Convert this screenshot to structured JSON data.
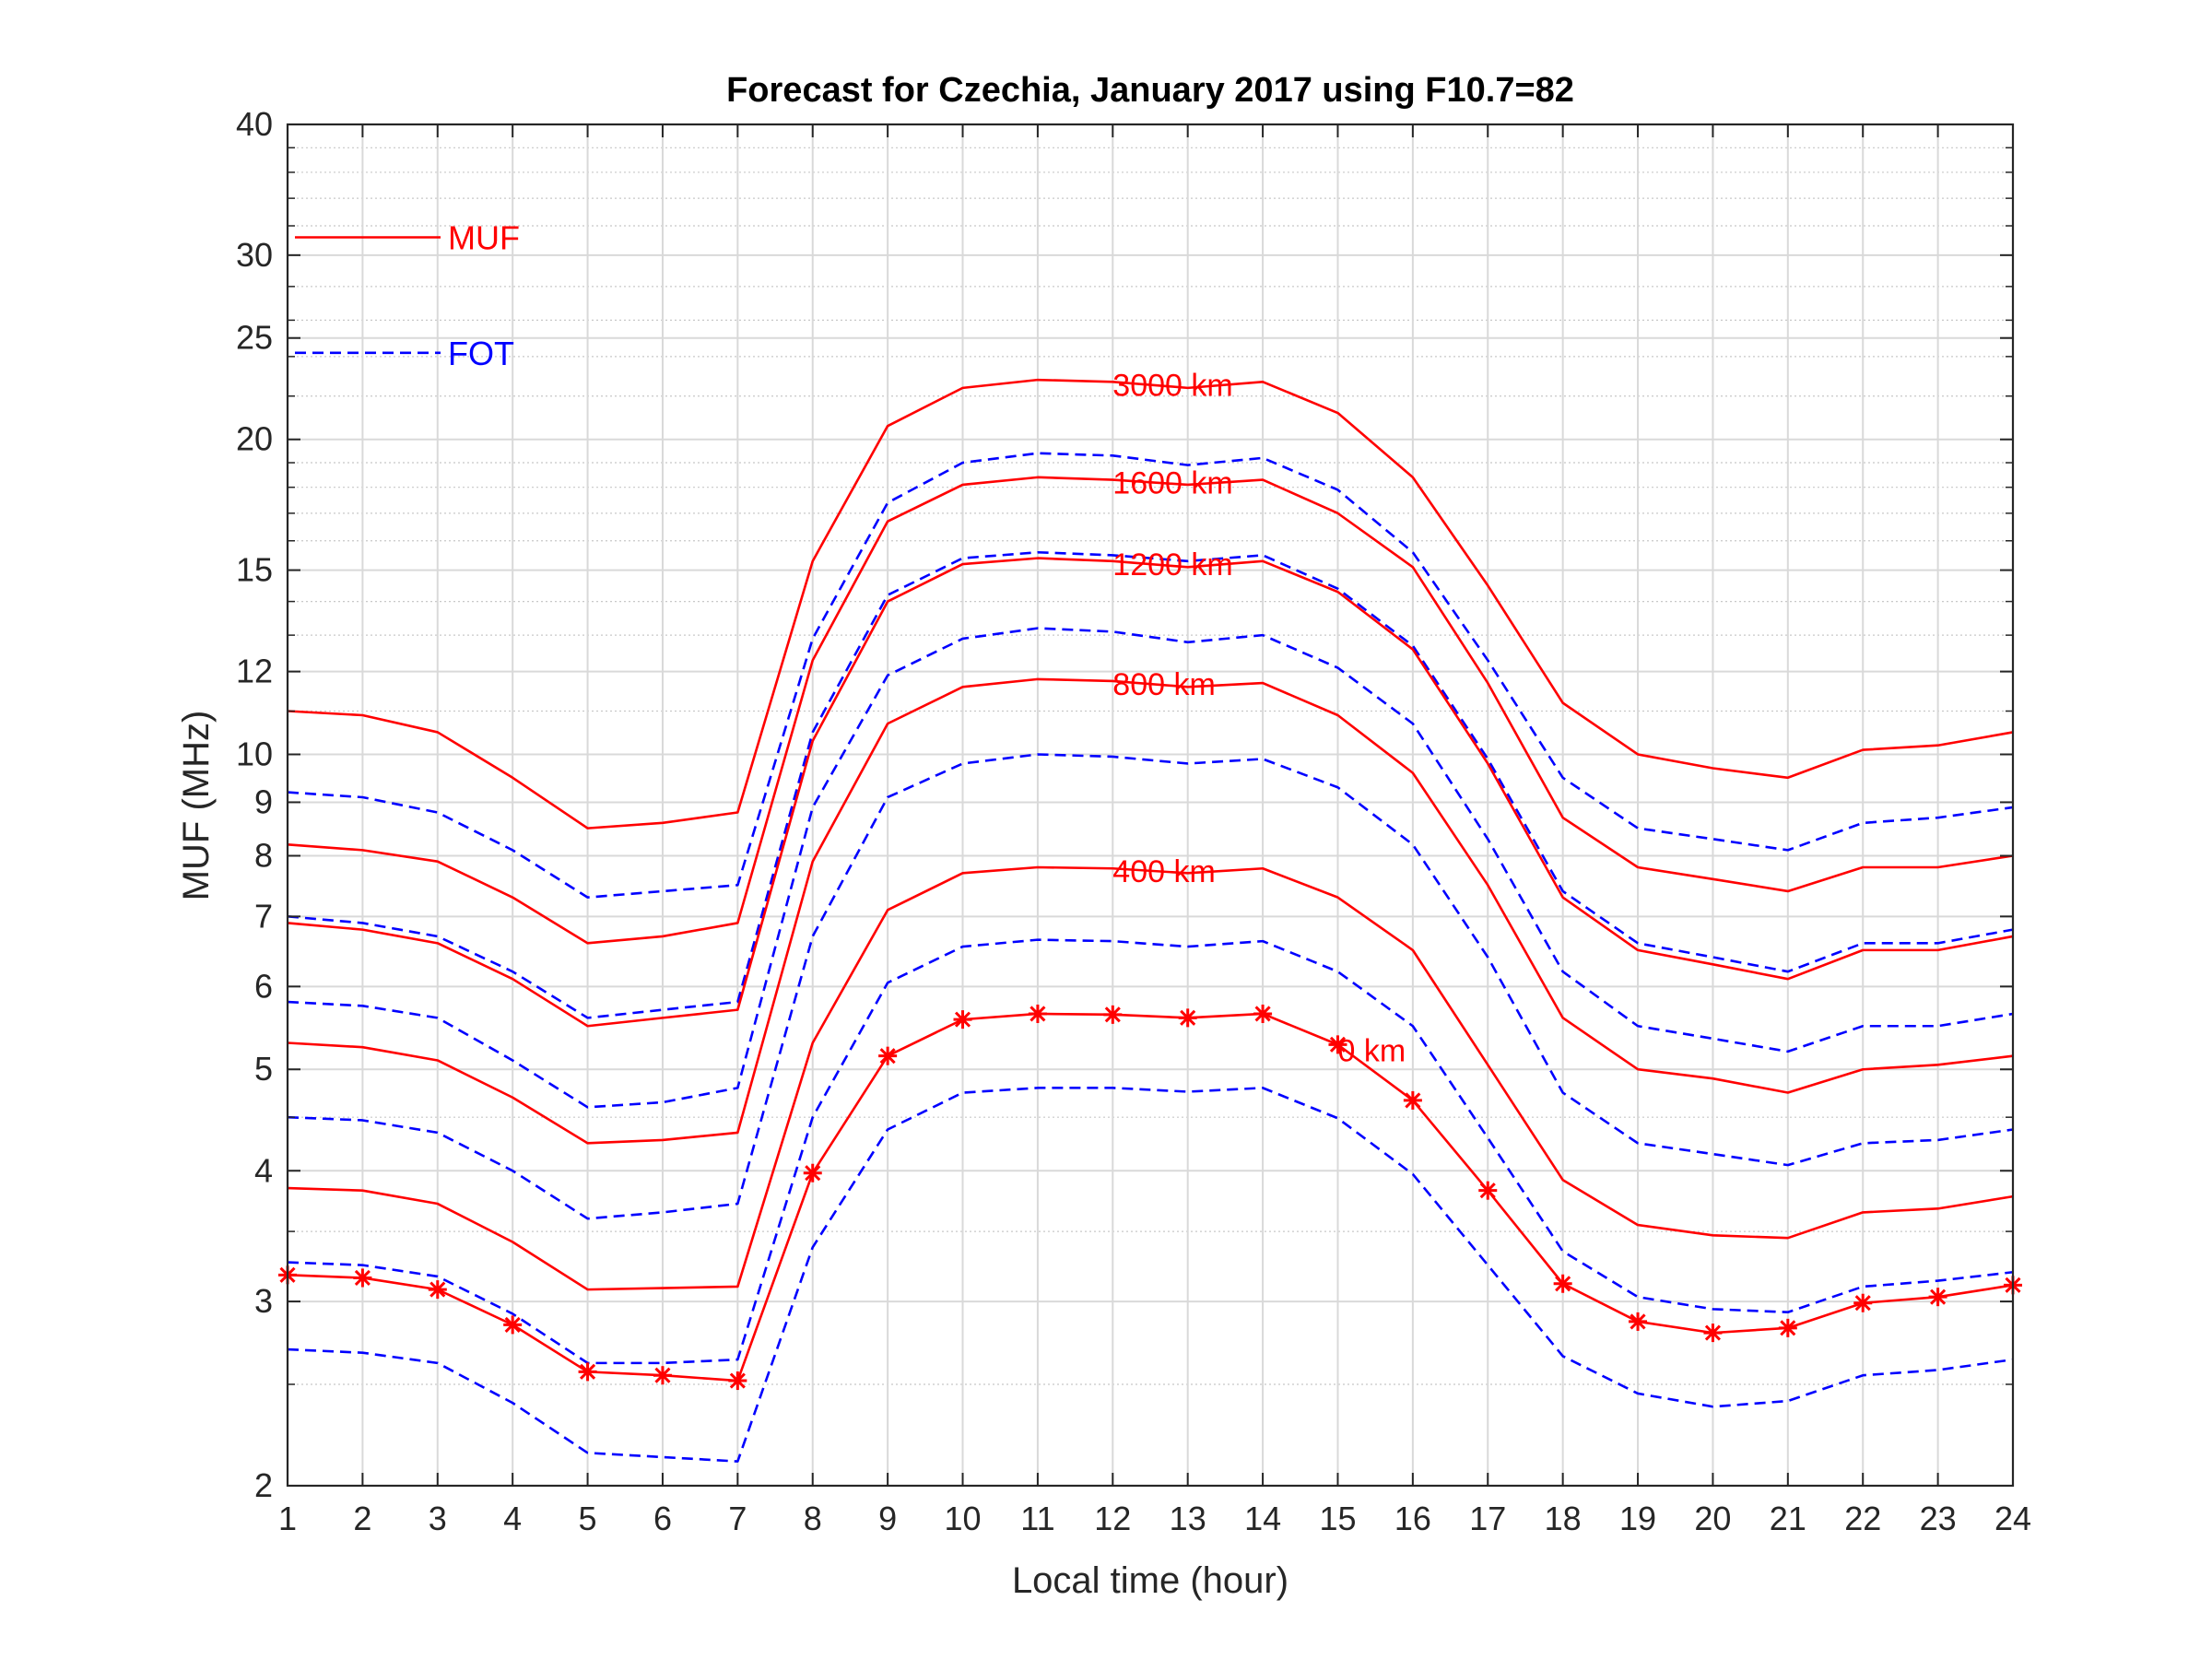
{
  "chart_data": {
    "type": "line",
    "title": "Forecast for Czechia, January 2017 using F10.7=82",
    "xlabel": "Local time (hour)",
    "ylabel": "MUF (MHz)",
    "xlim": [
      1,
      24
    ],
    "ylim": [
      2,
      40
    ],
    "yscale": "log",
    "grid": true,
    "minor_grid": true,
    "x": [
      1,
      2,
      3,
      4,
      5,
      6,
      7,
      8,
      9,
      10,
      11,
      12,
      13,
      14,
      15,
      16,
      17,
      18,
      19,
      20,
      21,
      22,
      23,
      24
    ],
    "xticks": [
      "1",
      "2",
      "3",
      "4",
      "5",
      "6",
      "7",
      "8",
      "9",
      "10",
      "11",
      "12",
      "13",
      "14",
      "15",
      "16",
      "17",
      "18",
      "19",
      "20",
      "21",
      "22",
      "23",
      "24"
    ],
    "yticks": [
      {
        "value": 2,
        "label": "2"
      },
      {
        "value": 3,
        "label": "3"
      },
      {
        "value": 4,
        "label": "4"
      },
      {
        "value": 5,
        "label": "5"
      },
      {
        "value": 6,
        "label": "6"
      },
      {
        "value": 7,
        "label": "7"
      },
      {
        "value": 8,
        "label": "8"
      },
      {
        "value": 9,
        "label": "9"
      },
      {
        "value": 10,
        "label": "10"
      },
      {
        "value": 12,
        "label": "12"
      },
      {
        "value": 15,
        "label": "15"
      },
      {
        "value": 20,
        "label": "20"
      },
      {
        "value": 25,
        "label": "25"
      },
      {
        "value": 30,
        "label": "30"
      },
      {
        "value": 40,
        "label": "40"
      }
    ],
    "legend": {
      "placement": "top-left",
      "entries": [
        {
          "label": "MUF",
          "color": "#ff0000",
          "style": "solid"
        },
        {
          "label": "FOT",
          "color": "#0000ff",
          "style": "dashed"
        }
      ]
    },
    "series": [
      {
        "type": "MUF",
        "color": "#ff0000",
        "style": "solid",
        "label": "3000 km",
        "label_at": 12.5,
        "values": [
          11.0,
          10.9,
          10.5,
          9.5,
          8.5,
          8.6,
          8.8,
          15.3,
          20.6,
          22.4,
          22.8,
          22.7,
          22.4,
          22.7,
          21.2,
          18.4,
          14.5,
          11.2,
          10.0,
          9.7,
          9.5,
          10.1,
          10.2,
          10.5
        ]
      },
      {
        "type": "FOT",
        "color": "#0000ff",
        "style": "dashed",
        "values": [
          9.2,
          9.1,
          8.8,
          8.1,
          7.3,
          7.4,
          7.5,
          12.9,
          17.4,
          19.0,
          19.4,
          19.3,
          18.9,
          19.2,
          17.9,
          15.6,
          12.3,
          9.5,
          8.5,
          8.3,
          8.1,
          8.6,
          8.7,
          8.9
        ]
      },
      {
        "type": "MUF",
        "color": "#ff0000",
        "style": "solid",
        "label": "1600 km",
        "label_at": 12.5,
        "values": [
          8.2,
          8.1,
          7.9,
          7.3,
          6.6,
          6.7,
          6.9,
          12.3,
          16.7,
          18.1,
          18.4,
          18.3,
          18.1,
          18.3,
          17.0,
          15.1,
          11.7,
          8.7,
          7.8,
          7.6,
          7.4,
          7.8,
          7.8,
          8.0
        ]
      },
      {
        "type": "FOT",
        "color": "#0000ff",
        "style": "dashed",
        "values": [
          7.0,
          6.9,
          6.7,
          6.2,
          5.6,
          5.7,
          5.8,
          10.5,
          14.2,
          15.4,
          15.6,
          15.5,
          15.3,
          15.5,
          14.4,
          12.7,
          9.9,
          7.4,
          6.6,
          6.4,
          6.2,
          6.6,
          6.6,
          6.8
        ]
      },
      {
        "type": "MUF",
        "color": "#ff0000",
        "style": "solid",
        "label": "1200 km",
        "label_at": 12.5,
        "values": [
          6.9,
          6.8,
          6.6,
          6.1,
          5.5,
          5.6,
          5.7,
          10.3,
          14.0,
          15.2,
          15.4,
          15.3,
          15.1,
          15.3,
          14.3,
          12.6,
          9.8,
          7.3,
          6.5,
          6.3,
          6.1,
          6.5,
          6.5,
          6.7
        ]
      },
      {
        "type": "FOT",
        "color": "#0000ff",
        "style": "dashed",
        "values": [
          5.8,
          5.75,
          5.6,
          5.1,
          4.6,
          4.65,
          4.8,
          8.9,
          11.9,
          12.9,
          13.2,
          13.1,
          12.8,
          13.0,
          12.1,
          10.7,
          8.3,
          6.2,
          5.5,
          5.35,
          5.2,
          5.5,
          5.5,
          5.65
        ]
      },
      {
        "type": "MUF",
        "color": "#ff0000",
        "style": "solid",
        "label": "800 km",
        "label_at": 12.5,
        "values": [
          5.3,
          5.25,
          5.1,
          4.7,
          4.25,
          4.28,
          4.35,
          7.9,
          10.7,
          11.6,
          11.8,
          11.75,
          11.6,
          11.7,
          10.9,
          9.6,
          7.5,
          5.6,
          5.0,
          4.9,
          4.75,
          5.0,
          5.05,
          5.15
        ]
      },
      {
        "type": "FOT",
        "color": "#0000ff",
        "style": "dashed",
        "values": [
          4.5,
          4.47,
          4.35,
          4.0,
          3.6,
          3.65,
          3.72,
          6.7,
          9.1,
          9.8,
          10.0,
          9.95,
          9.8,
          9.9,
          9.3,
          8.2,
          6.4,
          4.75,
          4.25,
          4.15,
          4.05,
          4.25,
          4.28,
          4.38
        ]
      },
      {
        "type": "MUF",
        "color": "#ff0000",
        "style": "solid",
        "label": "400 km",
        "label_at": 12.5,
        "values": [
          3.85,
          3.83,
          3.72,
          3.42,
          3.08,
          3.09,
          3.1,
          5.3,
          7.1,
          7.7,
          7.8,
          7.78,
          7.7,
          7.78,
          7.3,
          6.5,
          5.05,
          3.92,
          3.55,
          3.47,
          3.45,
          3.65,
          3.68,
          3.78
        ]
      },
      {
        "type": "FOT",
        "color": "#0000ff",
        "style": "dashed",
        "values": [
          3.27,
          3.25,
          3.17,
          2.92,
          2.62,
          2.62,
          2.64,
          4.5,
          6.05,
          6.55,
          6.65,
          6.63,
          6.55,
          6.63,
          6.2,
          5.5,
          4.3,
          3.35,
          3.03,
          2.95,
          2.93,
          3.1,
          3.14,
          3.2
        ]
      },
      {
        "type": "MUF",
        "color": "#ff0000",
        "style": "solid",
        "markers": "asterisk",
        "label": "0 km",
        "label_at": 15.6,
        "values": [
          3.18,
          3.16,
          3.08,
          2.85,
          2.57,
          2.55,
          2.52,
          3.98,
          5.15,
          5.58,
          5.65,
          5.64,
          5.6,
          5.65,
          5.28,
          4.67,
          3.83,
          3.12,
          2.87,
          2.8,
          2.83,
          2.99,
          3.03,
          3.11
        ]
      },
      {
        "type": "FOT",
        "color": "#0000ff",
        "style": "dashed",
        "values": [
          2.7,
          2.68,
          2.62,
          2.4,
          2.15,
          2.13,
          2.11,
          3.38,
          4.38,
          4.75,
          4.8,
          4.8,
          4.76,
          4.8,
          4.49,
          3.97,
          3.25,
          2.66,
          2.45,
          2.38,
          2.41,
          2.55,
          2.58,
          2.64
        ]
      }
    ]
  }
}
